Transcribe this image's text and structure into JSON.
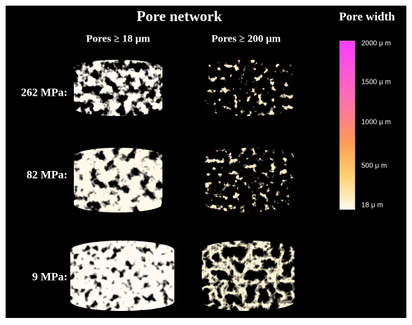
{
  "header": {
    "title": "Pore network"
  },
  "columns": [
    "Pores ≥ 18 μm",
    "Pores ≥ 200 μm"
  ],
  "rows": [
    "262 MPa:",
    "82 MPa:",
    "9 MPa:"
  ],
  "colorbar": {
    "title": "Pore width",
    "labels": [
      "2000 μ m",
      "1500 μ m",
      "1000 μ m",
      "500 μ m",
      "18 μ m"
    ]
  }
}
